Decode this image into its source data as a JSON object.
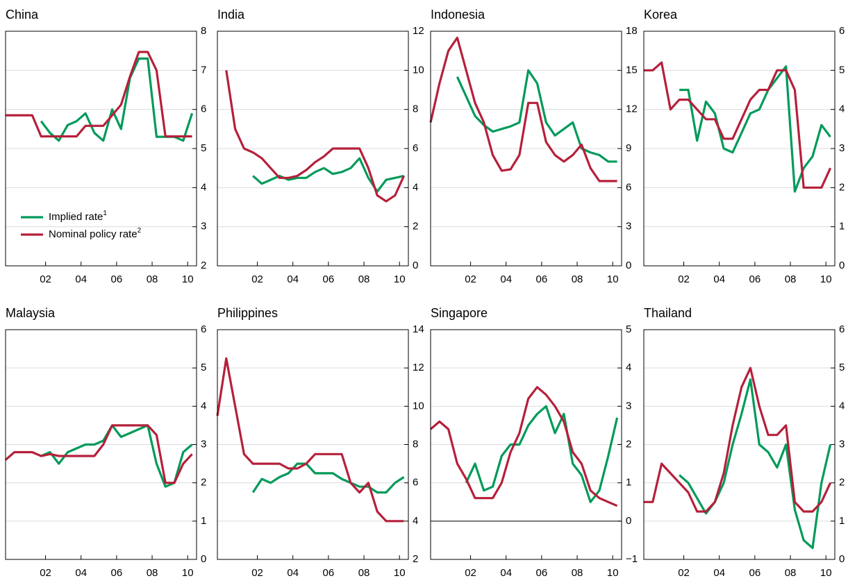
{
  "chart_data": [
    {
      "type": "line",
      "title": "China",
      "legend": "lower left",
      "x": [
        2000.25,
        2000.75,
        2001.25,
        2001.75,
        2002.25,
        2002.75,
        2003.25,
        2003.75,
        2004.25,
        2004.75,
        2005.25,
        2005.75,
        2006.25,
        2006.75,
        2007.25,
        2007.75,
        2008.25,
        2008.75,
        2009.25,
        2009.75,
        2010.25,
        2010.75
      ],
      "xlim": [
        2000.25,
        2011
      ],
      "xticks": [
        {
          "value": 2002.5,
          "label": "02"
        },
        {
          "value": 2004.5,
          "label": "04"
        },
        {
          "value": 2006.5,
          "label": "06"
        },
        {
          "value": 2008.5,
          "label": "08"
        },
        {
          "value": 2010.5,
          "label": "10"
        }
      ],
      "ylim": [
        2,
        8
      ],
      "yticks": [
        2,
        3,
        4,
        5,
        6,
        7,
        8
      ],
      "grid": true,
      "series": [
        {
          "name": "Implied rate",
          "note": "1",
          "color": "#009a5a",
          "values": [
            null,
            null,
            null,
            null,
            5.7,
            5.4,
            5.2,
            5.6,
            5.7,
            5.9,
            5.4,
            5.2,
            6.0,
            5.5,
            6.8,
            7.3,
            7.3,
            5.3,
            5.3,
            5.3,
            5.2,
            5.9
          ]
        },
        {
          "name": "Nominal policy rate",
          "note": "2",
          "color": "#b5203a",
          "values": [
            5.85,
            5.85,
            5.85,
            5.85,
            5.31,
            5.31,
            5.31,
            5.31,
            5.31,
            5.58,
            5.58,
            5.58,
            5.85,
            6.12,
            6.84,
            7.47,
            7.47,
            7.0,
            5.31,
            5.31,
            5.31,
            5.31
          ]
        }
      ]
    },
    {
      "type": "line",
      "title": "India",
      "x": [
        2000.25,
        2000.75,
        2001.25,
        2001.75,
        2002.25,
        2002.75,
        2003.25,
        2003.75,
        2004.25,
        2004.75,
        2005.25,
        2005.75,
        2006.25,
        2006.75,
        2007.25,
        2007.75,
        2008.25,
        2008.75,
        2009.25,
        2009.75,
        2010.25,
        2010.75
      ],
      "xlim": [
        2000.25,
        2011
      ],
      "xticks": [
        {
          "value": 2002.5,
          "label": "02"
        },
        {
          "value": 2004.5,
          "label": "04"
        },
        {
          "value": 2006.5,
          "label": "06"
        },
        {
          "value": 2008.5,
          "label": "08"
        },
        {
          "value": 2010.5,
          "label": "10"
        }
      ],
      "ylim": [
        0,
        12
      ],
      "yticks": [
        0,
        2,
        4,
        6,
        8,
        10,
        12
      ],
      "grid": true,
      "series": [
        {
          "color": "#009a5a",
          "values": [
            null,
            null,
            null,
            null,
            4.6,
            4.2,
            4.4,
            4.6,
            4.4,
            4.5,
            4.5,
            4.8,
            5.0,
            4.7,
            4.8,
            5.0,
            5.5,
            4.5,
            3.8,
            4.4,
            4.5,
            4.6
          ]
        },
        {
          "color": "#b5203a",
          "values": [
            null,
            10,
            7.0,
            6.0,
            5.8,
            5.5,
            5.0,
            4.5,
            4.5,
            4.6,
            4.9,
            5.3,
            5.6,
            6.0,
            6.0,
            6.0,
            6.0,
            5.0,
            3.6,
            3.3,
            3.6,
            4.6
          ]
        }
      ]
    },
    {
      "type": "line",
      "title": "Indonesia",
      "x": [
        2000.25,
        2000.75,
        2001.25,
        2001.75,
        2002.25,
        2002.75,
        2003.25,
        2003.75,
        2004.25,
        2004.75,
        2005.25,
        2005.75,
        2006.25,
        2006.75,
        2007.25,
        2007.75,
        2008.25,
        2008.75,
        2009.25,
        2009.75,
        2010.25,
        2010.75
      ],
      "xlim": [
        2000.25,
        2011
      ],
      "xticks": [
        {
          "value": 2002.5,
          "label": "02"
        },
        {
          "value": 2004.5,
          "label": "04"
        },
        {
          "value": 2006.5,
          "label": "06"
        },
        {
          "value": 2008.5,
          "label": "08"
        },
        {
          "value": 2010.5,
          "label": "10"
        }
      ],
      "ylim": [
        0,
        18
      ],
      "yticks": [
        0,
        3,
        6,
        9,
        12,
        15,
        18
      ],
      "grid": true,
      "series": [
        {
          "color": "#009a5a",
          "values": [
            null,
            null,
            null,
            14.5,
            13,
            11.5,
            10.8,
            10.3,
            10.5,
            10.7,
            11,
            15,
            14,
            11,
            10,
            10.5,
            11,
            9,
            8.7,
            8.5,
            8.0,
            8.0
          ]
        },
        {
          "color": "#b5203a",
          "values": [
            11,
            14,
            16.5,
            17.5,
            15,
            12.5,
            11,
            8.5,
            7.3,
            7.4,
            8.5,
            12.5,
            12.5,
            9.5,
            8.5,
            8.0,
            8.5,
            9.3,
            7.5,
            6.5,
            6.5,
            6.5
          ]
        }
      ]
    },
    {
      "type": "line",
      "title": "Korea",
      "x": [
        2000.25,
        2000.75,
        2001.25,
        2001.75,
        2002.25,
        2002.75,
        2003.25,
        2003.75,
        2004.25,
        2004.75,
        2005.25,
        2005.75,
        2006.25,
        2006.75,
        2007.25,
        2007.75,
        2008.25,
        2008.75,
        2009.25,
        2009.75,
        2010.25,
        2010.75
      ],
      "xlim": [
        2000.25,
        2011
      ],
      "xticks": [
        {
          "value": 2002.5,
          "label": "02"
        },
        {
          "value": 2004.5,
          "label": "04"
        },
        {
          "value": 2006.5,
          "label": "06"
        },
        {
          "value": 2008.5,
          "label": "08"
        },
        {
          "value": 2010.5,
          "label": "10"
        }
      ],
      "ylim": [
        0,
        6
      ],
      "yticks": [
        0,
        1,
        2,
        3,
        4,
        5,
        6
      ],
      "grid": true,
      "series": [
        {
          "color": "#009a5a",
          "values": [
            null,
            null,
            null,
            null,
            4.5,
            4.5,
            3.2,
            4.2,
            3.9,
            3.0,
            2.9,
            3.4,
            3.9,
            4.0,
            4.5,
            4.8,
            5.1,
            1.9,
            2.5,
            2.8,
            3.6,
            3.3
          ]
        },
        {
          "color": "#b5203a",
          "values": [
            5,
            5,
            5.2,
            4,
            4.25,
            4.25,
            4,
            3.75,
            3.75,
            3.25,
            3.25,
            3.75,
            4.25,
            4.5,
            4.5,
            5,
            5,
            4.5,
            2,
            2,
            2,
            2.5
          ]
        }
      ]
    },
    {
      "type": "line",
      "title": "Malaysia",
      "x": [
        2000.25,
        2000.75,
        2001.25,
        2001.75,
        2002.25,
        2002.75,
        2003.25,
        2003.75,
        2004.25,
        2004.75,
        2005.25,
        2005.75,
        2006.25,
        2006.75,
        2007.25,
        2007.75,
        2008.25,
        2008.75,
        2009.25,
        2009.75,
        2010.25,
        2010.75
      ],
      "xlim": [
        2000.25,
        2011
      ],
      "xticks": [
        {
          "value": 2002.5,
          "label": "02"
        },
        {
          "value": 2004.5,
          "label": "04"
        },
        {
          "value": 2006.5,
          "label": "06"
        },
        {
          "value": 2008.5,
          "label": "08"
        },
        {
          "value": 2010.5,
          "label": "10"
        }
      ],
      "ylim": [
        0,
        6
      ],
      "yticks": [
        0,
        1,
        2,
        3,
        4,
        5,
        6
      ],
      "grid": true,
      "series": [
        {
          "color": "#009a5a",
          "values": [
            null,
            null,
            null,
            null,
            2.7,
            2.8,
            2.5,
            2.8,
            2.9,
            3.0,
            3.0,
            3.1,
            3.5,
            3.2,
            3.3,
            3.4,
            3.5,
            2.5,
            1.9,
            2.0,
            2.8,
            3.0
          ]
        },
        {
          "color": "#b5203a",
          "values": [
            2.6,
            2.8,
            2.8,
            2.8,
            2.7,
            2.75,
            2.7,
            2.7,
            2.7,
            2.7,
            2.7,
            3.0,
            3.5,
            3.5,
            3.5,
            3.5,
            3.5,
            3.25,
            2.0,
            2.0,
            2.5,
            2.75
          ]
        }
      ]
    },
    {
      "type": "line",
      "title": "Philippines",
      "x": [
        2000.25,
        2000.75,
        2001.25,
        2001.75,
        2002.25,
        2002.75,
        2003.25,
        2003.75,
        2004.25,
        2004.75,
        2005.25,
        2005.75,
        2006.25,
        2006.75,
        2007.25,
        2007.75,
        2008.25,
        2008.75,
        2009.25,
        2009.75,
        2010.25,
        2010.75
      ],
      "xlim": [
        2000.25,
        2011
      ],
      "xticks": [
        {
          "value": 2002.5,
          "label": "02"
        },
        {
          "value": 2004.5,
          "label": "04"
        },
        {
          "value": 2006.5,
          "label": "06"
        },
        {
          "value": 2008.5,
          "label": "08"
        },
        {
          "value": 2010.5,
          "label": "10"
        }
      ],
      "ylim": [
        2,
        14
      ],
      "yticks": [
        2,
        4,
        6,
        8,
        10,
        12,
        14
      ],
      "grid": true,
      "series": [
        {
          "color": "#009a5a",
          "values": [
            null,
            null,
            null,
            null,
            5.5,
            6.2,
            6.0,
            6.3,
            6.5,
            7.0,
            7.0,
            6.5,
            6.5,
            6.5,
            6.2,
            6.0,
            5.8,
            5.8,
            5.5,
            5.5,
            6.0,
            6.3
          ]
        },
        {
          "color": "#b5203a",
          "values": [
            9.5,
            12.5,
            10,
            7.5,
            7.0,
            7.0,
            7.0,
            7.0,
            6.75,
            6.75,
            7.0,
            7.5,
            7.5,
            7.5,
            7.5,
            6,
            5.5,
            6,
            4.5,
            4.0,
            4.0,
            4.0
          ]
        }
      ]
    },
    {
      "type": "line",
      "title": "Singapore",
      "x": [
        2000.25,
        2000.75,
        2001.25,
        2001.75,
        2002.25,
        2002.75,
        2003.25,
        2003.75,
        2004.25,
        2004.75,
        2005.25,
        2005.75,
        2006.25,
        2006.75,
        2007.25,
        2007.75,
        2008.25,
        2008.75,
        2009.25,
        2009.75,
        2010.25,
        2010.75
      ],
      "xlim": [
        2000.25,
        2011
      ],
      "xticks": [
        {
          "value": 2002.5,
          "label": "02"
        },
        {
          "value": 2004.5,
          "label": "04"
        },
        {
          "value": 2006.5,
          "label": "06"
        },
        {
          "value": 2008.5,
          "label": "08"
        },
        {
          "value": 2010.5,
          "label": "10"
        }
      ],
      "ylim": [
        -1,
        5
      ],
      "yticks": [
        {
          "value": -1,
          "label": "−1"
        },
        0,
        1,
        2,
        3,
        4,
        5
      ],
      "grid": true,
      "series": [
        {
          "color": "#009a5a",
          "values": [
            null,
            null,
            null,
            null,
            1.0,
            1.5,
            0.8,
            0.9,
            1.7,
            2.0,
            2.0,
            2.5,
            2.8,
            3.0,
            2.3,
            2.8,
            1.5,
            1.2,
            0.5,
            0.8,
            1.7,
            2.7
          ]
        },
        {
          "color": "#b5203a",
          "values": [
            2.4,
            2.6,
            2.4,
            1.5,
            1.1,
            0.6,
            0.6,
            0.6,
            1.0,
            1.8,
            2.3,
            3.2,
            3.5,
            3.3,
            3.0,
            2.6,
            1.8,
            1.5,
            0.8,
            0.6,
            0.5,
            0.4
          ]
        }
      ]
    },
    {
      "type": "line",
      "title": "Thailand",
      "x": [
        2000.25,
        2000.75,
        2001.25,
        2001.75,
        2002.25,
        2002.75,
        2003.25,
        2003.75,
        2004.25,
        2004.75,
        2005.25,
        2005.75,
        2006.25,
        2006.75,
        2007.25,
        2007.75,
        2008.25,
        2008.75,
        2009.25,
        2009.75,
        2010.25,
        2010.75
      ],
      "xlim": [
        2000.25,
        2011
      ],
      "xticks": [
        {
          "value": 2002.5,
          "label": "02"
        },
        {
          "value": 2004.5,
          "label": "04"
        },
        {
          "value": 2006.5,
          "label": "06"
        },
        {
          "value": 2008.5,
          "label": "08"
        },
        {
          "value": 2010.5,
          "label": "10"
        }
      ],
      "ylim": [
        0,
        6
      ],
      "yticks": [
        0,
        1,
        2,
        3,
        4,
        5,
        6
      ],
      "grid": true,
      "series": [
        {
          "color": "#009a5a",
          "values": [
            null,
            null,
            null,
            null,
            2.2,
            2.0,
            1.6,
            1.2,
            1.5,
            2.0,
            3.0,
            3.8,
            4.7,
            3.0,
            2.8,
            2.4,
            3.0,
            1.3,
            0.5,
            0.3,
            2.0,
            3.0
          ]
        },
        {
          "color": "#b5203a",
          "values": [
            1.5,
            1.5,
            2.5,
            2.25,
            2.0,
            1.75,
            1.25,
            1.25,
            1.5,
            2.25,
            3.5,
            4.5,
            5.0,
            4.0,
            3.25,
            3.25,
            3.5,
            1.5,
            1.25,
            1.25,
            1.5,
            2.0
          ]
        }
      ]
    }
  ]
}
